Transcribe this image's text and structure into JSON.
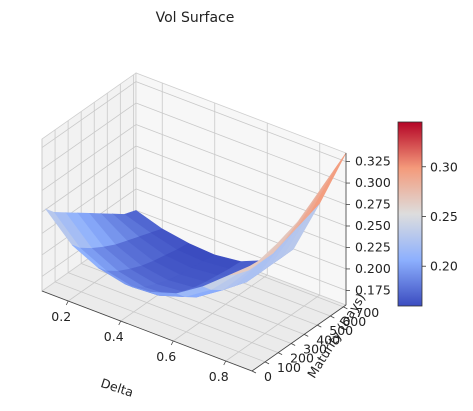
{
  "chart_data": {
    "type": "surface",
    "title": "Vol Surface",
    "xlabel": "Delta",
    "ylabel": "Maturity (Days)",
    "zlabel": "",
    "colormap": "coolwarm",
    "x": [
      0.1,
      0.2,
      0.3,
      0.4,
      0.5,
      0.6,
      0.7,
      0.8,
      0.9
    ],
    "y": [
      30,
      90,
      180,
      270,
      360,
      450,
      540,
      630,
      720
    ],
    "z": [
      [
        0.25,
        0.22,
        0.205,
        0.198,
        0.2,
        0.21,
        0.23,
        0.255,
        0.28
      ],
      [
        0.24,
        0.21,
        0.195,
        0.188,
        0.19,
        0.2,
        0.22,
        0.25,
        0.28
      ],
      [
        0.23,
        0.2,
        0.185,
        0.178,
        0.18,
        0.19,
        0.21,
        0.245,
        0.285
      ],
      [
        0.22,
        0.192,
        0.178,
        0.172,
        0.175,
        0.185,
        0.205,
        0.245,
        0.29
      ],
      [
        0.21,
        0.185,
        0.172,
        0.167,
        0.17,
        0.18,
        0.2,
        0.245,
        0.295
      ],
      [
        0.2,
        0.18,
        0.168,
        0.164,
        0.167,
        0.178,
        0.2,
        0.25,
        0.305
      ],
      [
        0.19,
        0.175,
        0.165,
        0.162,
        0.165,
        0.176,
        0.2,
        0.255,
        0.315
      ],
      [
        0.18,
        0.17,
        0.162,
        0.16,
        0.163,
        0.175,
        0.2,
        0.26,
        0.325
      ],
      [
        0.175,
        0.165,
        0.16,
        0.158,
        0.162,
        0.175,
        0.2,
        0.265,
        0.335
      ]
    ],
    "xlim": [
      0.1,
      0.9
    ],
    "ylim": [
      0,
      720
    ],
    "zlim": [
      0.158,
      0.335
    ],
    "x_ticks": [
      "0.2",
      "0.4",
      "0.6",
      "0.8"
    ],
    "y_ticks": [
      "0",
      "100",
      "200",
      "300",
      "400",
      "500",
      "600",
      "700"
    ],
    "z_ticks": [
      "0.175",
      "0.200",
      "0.225",
      "0.250",
      "0.275",
      "0.300",
      "0.325"
    ],
    "colorbar_ticks": [
      "0.20",
      "0.25",
      "0.30"
    ],
    "colorbar_range": [
      0.16,
      0.345
    ]
  }
}
